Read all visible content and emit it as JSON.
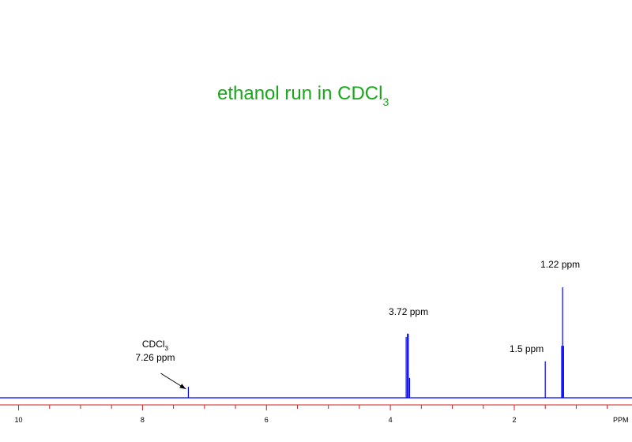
{
  "chart_data": {
    "type": "line",
    "title_main": "ethanol run in CDCl",
    "title_sub": "3",
    "xlabel": "PPM",
    "xlim": [
      10.3,
      0.1
    ],
    "x_reversed": true,
    "ylim": [
      0,
      1
    ],
    "grid": false,
    "x_ticks": [
      10,
      8,
      6,
      4,
      2
    ],
    "x_tick_labels": [
      "10",
      "8",
      "6",
      "4",
      "2"
    ],
    "minor_tick_step": 0.5,
    "series": [
      {
        "peaks": [
          {
            "ppm": 7.26,
            "height": 0.1
          },
          {
            "ppm": 3.745,
            "height": 0.55
          },
          {
            "ppm": 3.725,
            "height": 0.58
          },
          {
            "ppm": 3.71,
            "height": 0.58
          },
          {
            "ppm": 3.69,
            "height": 0.18
          },
          {
            "ppm": 1.5,
            "height": 0.33
          },
          {
            "ppm": 1.235,
            "height": 0.47
          },
          {
            "ppm": 1.22,
            "height": 1.0
          },
          {
            "ppm": 1.205,
            "height": 0.47
          }
        ]
      }
    ],
    "annotations": [
      {
        "ppm": 7.26,
        "line1": "CDCl",
        "line1_sub": "3",
        "line2": "7.26 ppm",
        "arrow": true
      },
      {
        "ppm": 3.72,
        "text": "3.72 ppm"
      },
      {
        "ppm": 1.5,
        "text": "1.5 ppm"
      },
      {
        "ppm": 1.22,
        "text": "1.22 ppm"
      }
    ],
    "colors": {
      "trace": "#0000ff",
      "axis": "#cc2222",
      "title": "#1aa61a"
    }
  }
}
